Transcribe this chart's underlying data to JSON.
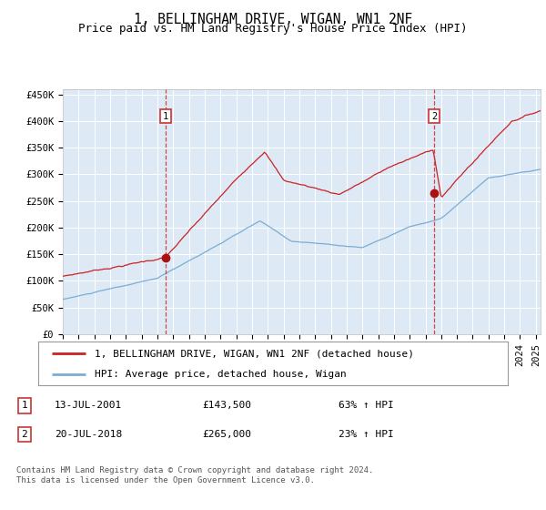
{
  "title": "1, BELLINGHAM DRIVE, WIGAN, WN1 2NF",
  "subtitle": "Price paid vs. HM Land Registry's House Price Index (HPI)",
  "ylim": [
    0,
    460000
  ],
  "ytick_labels": [
    "£0",
    "£50K",
    "£100K",
    "£150K",
    "£200K",
    "£250K",
    "£300K",
    "£350K",
    "£400K",
    "£450K"
  ],
  "ytick_values": [
    0,
    50000,
    100000,
    150000,
    200000,
    250000,
    300000,
    350000,
    400000,
    450000
  ],
  "xlim_start": 1995.0,
  "xlim_end": 2025.3,
  "hpi_line_color": "#7aadd4",
  "price_line_color": "#cc2222",
  "marker_color": "#aa1111",
  "vline_color": "#cc3333",
  "bg_color": "#ddeaf6",
  "outer_bg": "#f0f0f0",
  "grid_color": "#ffffff",
  "sale1_x": 2001.534,
  "sale1_y": 143500,
  "sale2_x": 2018.542,
  "sale2_y": 265000,
  "legend_label_price": "1, BELLINGHAM DRIVE, WIGAN, WN1 2NF (detached house)",
  "legend_label_hpi": "HPI: Average price, detached house, Wigan",
  "annotation1_date": "13-JUL-2001",
  "annotation1_price": "£143,500",
  "annotation1_pct": "63% ↑ HPI",
  "annotation2_date": "20-JUL-2018",
  "annotation2_price": "£265,000",
  "annotation2_pct": "23% ↑ HPI",
  "footer_text": "Contains HM Land Registry data © Crown copyright and database right 2024.\nThis data is licensed under the Open Government Licence v3.0.",
  "title_fontsize": 10.5,
  "subtitle_fontsize": 9,
  "tick_fontsize": 7.5,
  "legend_fontsize": 8,
  "table_fontsize": 8,
  "footer_fontsize": 6.5
}
